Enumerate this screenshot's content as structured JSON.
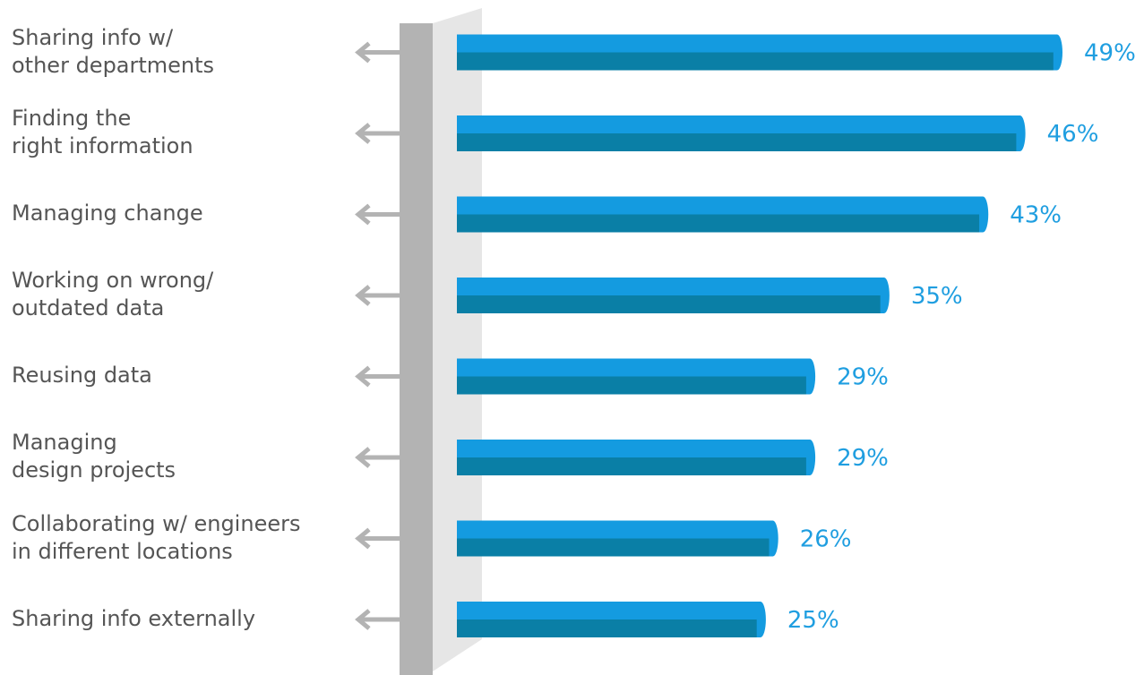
{
  "chart_data": {
    "type": "bar",
    "orientation": "horizontal",
    "categories": [
      "Sharing info w/\nother departments",
      "Finding the\nright information",
      "Managing change",
      "Working on wrong/\noutdated data",
      "Reusing data",
      "Managing\ndesign projects",
      "Collaborating w/ engineers\nin different locations",
      "Sharing info externally"
    ],
    "values": [
      49,
      46,
      43,
      35,
      29,
      29,
      26,
      25
    ],
    "value_labels": [
      "49%",
      "46%",
      "43%",
      "35%",
      "29%",
      "29%",
      "26%",
      "25%"
    ],
    "title": "",
    "xlabel": "",
    "ylabel": "",
    "xlim": [
      0,
      49
    ],
    "grid": false,
    "colors": {
      "bar_top": "#149be0",
      "bar_bottom": "#0a7fa6",
      "value_text": "#1f9ee0",
      "wall_front": "#b3b3b3",
      "wall_side": "#e6e6e6",
      "arrow": "#b3b3b3",
      "label_text": "#555555"
    }
  }
}
